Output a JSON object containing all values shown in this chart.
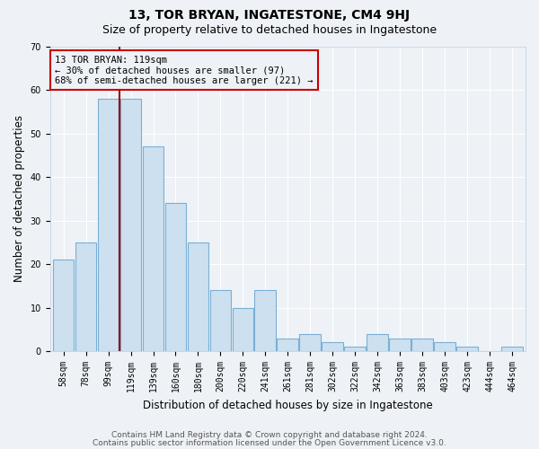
{
  "title": "13, TOR BRYAN, INGATESTONE, CM4 9HJ",
  "subtitle": "Size of property relative to detached houses in Ingatestone",
  "xlabel": "Distribution of detached houses by size in Ingatestone",
  "ylabel": "Number of detached properties",
  "categories": [
    "58sqm",
    "78sqm",
    "99sqm",
    "119sqm",
    "139sqm",
    "160sqm",
    "180sqm",
    "200sqm",
    "220sqm",
    "241sqm",
    "261sqm",
    "281sqm",
    "302sqm",
    "322sqm",
    "342sqm",
    "363sqm",
    "383sqm",
    "403sqm",
    "423sqm",
    "444sqm",
    "464sqm"
  ],
  "values": [
    21,
    25,
    58,
    58,
    47,
    34,
    25,
    14,
    10,
    14,
    3,
    4,
    2,
    1,
    4,
    3,
    3,
    2,
    1,
    0,
    1
  ],
  "bar_color": "#cde0f0",
  "bar_edge_color": "#7aafd4",
  "vline_x_index": 3,
  "vline_color": "#990000",
  "annotation_text": "13 TOR BRYAN: 119sqm\n← 30% of detached houses are smaller (97)\n68% of semi-detached houses are larger (221) →",
  "annotation_box_edgecolor": "#cc0000",
  "ylim": [
    0,
    70
  ],
  "yticks": [
    0,
    10,
    20,
    30,
    40,
    50,
    60,
    70
  ],
  "footer1": "Contains HM Land Registry data © Crown copyright and database right 2024.",
  "footer2": "Contains public sector information licensed under the Open Government Licence v3.0.",
  "bg_color": "#eef2f7",
  "grid_color": "#ffffff",
  "title_fontsize": 10,
  "subtitle_fontsize": 9,
  "axis_label_fontsize": 8.5,
  "tick_fontsize": 7,
  "footer_fontsize": 6.5,
  "annotation_fontsize": 7.5
}
